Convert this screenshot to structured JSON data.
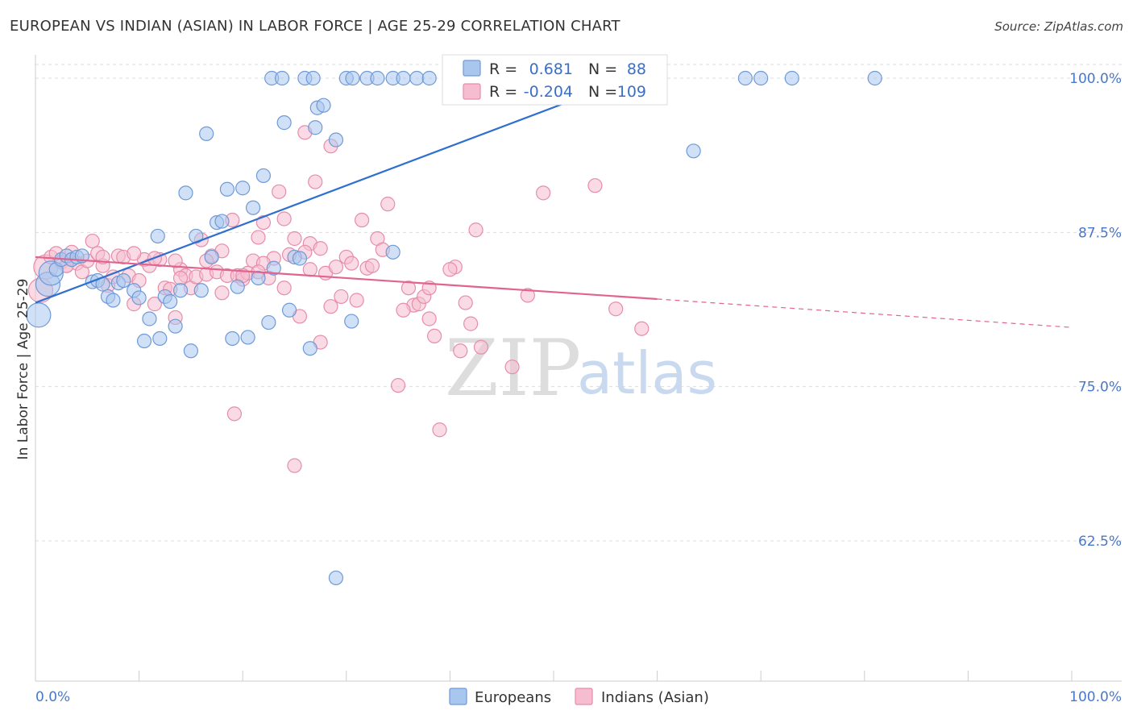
{
  "title": "EUROPEAN VS INDIAN (ASIAN) IN LABOR FORCE | AGE 25-29 CORRELATION CHART",
  "source": "Source: ZipAtlas.com",
  "watermark": {
    "zip": "ZIP",
    "atlas": "atlas"
  },
  "colors": {
    "europeans_fill": "#a9c7ee",
    "europeans_stroke": "#6f9ad6",
    "europeans_line": "#2f6fcf",
    "indians_fill": "#f6bdd0",
    "indians_stroke": "#e68daa",
    "indians_line": "#e0648e",
    "tick_label": "#4a78c8",
    "grid": "#dddddd"
  },
  "legend": {
    "rows": [
      {
        "r_label": "R =",
        "r_value": "0.681",
        "n_label": "N =",
        "n_value": "88"
      },
      {
        "r_label": "R =",
        "r_value": "-0.204",
        "n_label": "N =",
        "n_value": "109"
      }
    ]
  },
  "bottom_legend": [
    "Europeans",
    "Indians (Asian)"
  ],
  "chart_data": {
    "type": "scatter",
    "title": "EUROPEAN VS INDIAN (ASIAN) IN LABOR FORCE | AGE 25-29 CORRELATION CHART",
    "xlabel": "",
    "ylabel": "In Labor Force | Age 25-29",
    "xlim": [
      0,
      100
    ],
    "ylim": [
      50,
      101.5
    ],
    "x_tick_labels": [
      "0.0%",
      "100.0%"
    ],
    "y_ticks": [
      62.5,
      75.0,
      87.5,
      100.0
    ],
    "y_tick_labels": [
      "62.5%",
      "75.0%",
      "87.5%",
      "100.0%"
    ],
    "grid": true,
    "legend_position": "top-center",
    "series": [
      {
        "name": "Europeans",
        "r": 0.681,
        "n": 88,
        "trend": {
          "x0": 0,
          "y0": 81.8,
          "x1": 60,
          "y1": 100.8,
          "dashed_to": null
        },
        "points": [
          [
            0.3,
            80.8,
            "l"
          ],
          [
            1.2,
            83.3,
            "l"
          ],
          [
            1.5,
            84.2,
            "l"
          ],
          [
            2.0,
            84.5
          ],
          [
            2.5,
            85.3
          ],
          [
            3.0,
            85.6
          ],
          [
            3.5,
            85.3
          ],
          [
            4.0,
            85.5
          ],
          [
            4.5,
            85.6
          ],
          [
            5.5,
            83.5
          ],
          [
            6.0,
            83.6
          ],
          [
            6.5,
            83.3
          ],
          [
            7.0,
            82.3
          ],
          [
            7.5,
            82.0
          ],
          [
            8.0,
            83.4
          ],
          [
            8.5,
            83.6
          ],
          [
            9.5,
            82.8
          ],
          [
            10.0,
            82.2
          ],
          [
            10.5,
            78.7
          ],
          [
            11.0,
            80.5
          ],
          [
            12.0,
            78.9
          ],
          [
            12.5,
            82.3
          ],
          [
            13.0,
            81.9
          ],
          [
            13.5,
            79.9
          ],
          [
            14.0,
            82.8
          ],
          [
            15.0,
            77.9
          ],
          [
            11.8,
            87.2
          ],
          [
            14.5,
            90.7
          ],
          [
            15.5,
            87.2
          ],
          [
            16.0,
            82.8
          ],
          [
            16.5,
            95.5
          ],
          [
            17.0,
            85.5
          ],
          [
            17.5,
            88.3
          ],
          [
            18.0,
            88.4
          ],
          [
            18.5,
            91.0
          ],
          [
            19.0,
            78.9
          ],
          [
            19.5,
            83.1
          ],
          [
            20.0,
            91.1
          ],
          [
            20.5,
            79.0
          ],
          [
            21.0,
            89.5
          ],
          [
            21.5,
            83.8
          ],
          [
            22.0,
            92.1
          ],
          [
            22.5,
            80.2
          ],
          [
            23.0,
            84.6
          ],
          [
            24.0,
            96.4
          ],
          [
            24.5,
            81.2
          ],
          [
            25.0,
            85.5
          ],
          [
            25.5,
            85.4
          ],
          [
            26.5,
            78.1
          ],
          [
            27.0,
            96.0
          ],
          [
            27.2,
            97.6
          ],
          [
            27.8,
            97.8
          ],
          [
            29.0,
            95.0
          ],
          [
            30.5,
            80.3
          ],
          [
            34.5,
            85.9
          ],
          [
            29.0,
            59.5
          ],
          [
            63.5,
            94.1
          ],
          [
            22.8,
            100.0
          ],
          [
            23.8,
            100.0
          ],
          [
            26.0,
            100.0
          ],
          [
            26.8,
            100.0
          ],
          [
            30.0,
            100.0
          ],
          [
            30.6,
            100.0
          ],
          [
            32.0,
            100.0
          ],
          [
            33.0,
            100.0
          ],
          [
            34.5,
            100.0
          ],
          [
            35.5,
            100.0
          ],
          [
            36.8,
            100.0
          ],
          [
            38.0,
            100.0
          ],
          [
            41.0,
            100.0
          ],
          [
            42.5,
            100.0
          ],
          [
            45.5,
            100.0
          ],
          [
            47.5,
            100.0
          ],
          [
            49.0,
            100.0
          ],
          [
            50.5,
            100.0
          ],
          [
            52.5,
            100.0
          ],
          [
            54.0,
            100.0
          ],
          [
            56.0,
            100.0
          ],
          [
            57.5,
            100.0
          ],
          [
            58.5,
            100.0
          ],
          [
            60.0,
            100.0
          ],
          [
            68.5,
            100.0
          ],
          [
            70.0,
            100.0
          ],
          [
            73.0,
            100.0
          ],
          [
            81.0,
            100.0
          ]
        ]
      },
      {
        "name": "Indians (Asian)",
        "r": -0.204,
        "n": 109,
        "trend": {
          "x0": 0,
          "y0": 85.5,
          "x1": 60,
          "y1": 82.1,
          "dashed_to": {
            "x": 100,
            "y": 79.8
          }
        },
        "points": [
          [
            0.5,
            82.8,
            "l"
          ],
          [
            1.0,
            84.7,
            "l"
          ],
          [
            1.5,
            85.5
          ],
          [
            2.0,
            85.8
          ],
          [
            2.5,
            85.1
          ],
          [
            3.0,
            84.8
          ],
          [
            3.5,
            85.9
          ],
          [
            4.0,
            85.0
          ],
          [
            4.5,
            84.3
          ],
          [
            5.0,
            85.2
          ],
          [
            5.5,
            86.8
          ],
          [
            6.0,
            85.8
          ],
          [
            6.5,
            84.8
          ],
          [
            7.0,
            83.2
          ],
          [
            7.5,
            83.9
          ],
          [
            8.0,
            85.6
          ],
          [
            8.5,
            85.5
          ],
          [
            9.0,
            84.0
          ],
          [
            9.5,
            81.7
          ],
          [
            10.0,
            83.6
          ],
          [
            10.5,
            85.3
          ],
          [
            11.0,
            84.8
          ],
          [
            11.5,
            81.7
          ],
          [
            12.0,
            85.3
          ],
          [
            12.5,
            83.0
          ],
          [
            13.0,
            82.9
          ],
          [
            13.5,
            80.6
          ],
          [
            14.0,
            84.5
          ],
          [
            14.5,
            84.0
          ],
          [
            15.0,
            83.0
          ],
          [
            15.5,
            83.9
          ],
          [
            16.0,
            86.9
          ],
          [
            16.5,
            84.1
          ],
          [
            17.0,
            85.6
          ],
          [
            17.5,
            84.3
          ],
          [
            18.0,
            82.6
          ],
          [
            18.5,
            84.0
          ],
          [
            19.0,
            88.5
          ],
          [
            19.5,
            84.0
          ],
          [
            20.0,
            83.7
          ],
          [
            20.5,
            84.2
          ],
          [
            21.0,
            85.2
          ],
          [
            21.5,
            87.1
          ],
          [
            22.0,
            88.3
          ],
          [
            22.5,
            83.8
          ],
          [
            23.0,
            85.4
          ],
          [
            23.5,
            90.8
          ],
          [
            24.0,
            88.6
          ],
          [
            24.5,
            85.7
          ],
          [
            25.0,
            87.0
          ],
          [
            25.5,
            80.7
          ],
          [
            26.0,
            95.6
          ],
          [
            26.5,
            86.6
          ],
          [
            26.0,
            85.9
          ],
          [
            27.0,
            91.6
          ],
          [
            27.5,
            78.6
          ],
          [
            28.0,
            84.2
          ],
          [
            28.5,
            94.5
          ],
          [
            29.0,
            84.7
          ],
          [
            29.5,
            82.3
          ],
          [
            30.0,
            85.5
          ],
          [
            31.0,
            82.0
          ],
          [
            31.5,
            88.5
          ],
          [
            32.0,
            84.6
          ],
          [
            33.0,
            87.0
          ],
          [
            33.5,
            86.1
          ],
          [
            34.0,
            89.8
          ],
          [
            35.0,
            75.1
          ],
          [
            36.0,
            83.0
          ],
          [
            36.5,
            81.6
          ],
          [
            37.0,
            81.7
          ],
          [
            37.5,
            82.3
          ],
          [
            38.0,
            80.5
          ],
          [
            38.5,
            79.1
          ],
          [
            39.0,
            71.5
          ],
          [
            40.5,
            84.7
          ],
          [
            41.0,
            77.9
          ],
          [
            41.5,
            81.8
          ],
          [
            42.0,
            80.1
          ],
          [
            42.5,
            87.7
          ],
          [
            43.0,
            78.2
          ],
          [
            46.0,
            76.6
          ],
          [
            47.5,
            82.4
          ],
          [
            49.0,
            90.7
          ],
          [
            54.0,
            91.3
          ],
          [
            56.0,
            81.3
          ],
          [
            58.5,
            79.7
          ],
          [
            19.2,
            72.8
          ],
          [
            25.0,
            68.6
          ],
          [
            20.0,
            84.0
          ],
          [
            22.0,
            85.0
          ],
          [
            26.5,
            84.5
          ],
          [
            14.0,
            83.8
          ],
          [
            11.5,
            85.4
          ],
          [
            9.5,
            85.8
          ],
          [
            30.5,
            85.0
          ],
          [
            32.5,
            84.8
          ],
          [
            28.5,
            81.5
          ],
          [
            38.0,
            83.0
          ],
          [
            40.0,
            84.5
          ],
          [
            24.0,
            83.0
          ],
          [
            21.5,
            84.3
          ],
          [
            18.0,
            86.0
          ],
          [
            16.5,
            85.2
          ],
          [
            13.5,
            85.2
          ],
          [
            27.5,
            86.2
          ],
          [
            35.5,
            81.2
          ],
          [
            6.5,
            85.5
          ],
          [
            3.0,
            84.8
          ]
        ]
      }
    ]
  }
}
